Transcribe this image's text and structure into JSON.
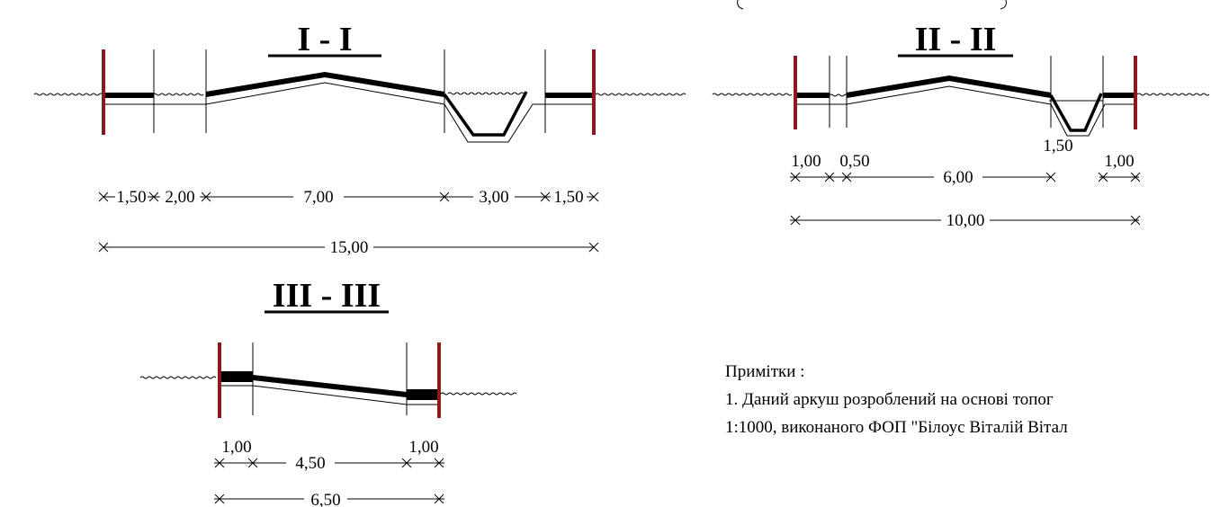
{
  "sections": [
    {
      "title": "I - I",
      "dims": [
        "1,50",
        "2,00",
        "7,00",
        "3,00",
        "1,50"
      ],
      "total": "15,00"
    },
    {
      "title": "II - II",
      "dims": [
        "1,00",
        "0,50",
        "6,00",
        "1,50",
        "1,00"
      ],
      "total": "10,00"
    },
    {
      "title": "III - III",
      "dims": [
        "1,00",
        "4,50",
        "1,00"
      ],
      "total": "6,50"
    }
  ],
  "notes": {
    "heading": "Примітки :",
    "line1": "1. Даний аркуш розроблений на основі топог",
    "line2": "1:1000, виконаного ФОП \"Білоус Віталій Вітал"
  },
  "colors": {
    "boundary": "#8b1a1a",
    "line": "#000000"
  }
}
